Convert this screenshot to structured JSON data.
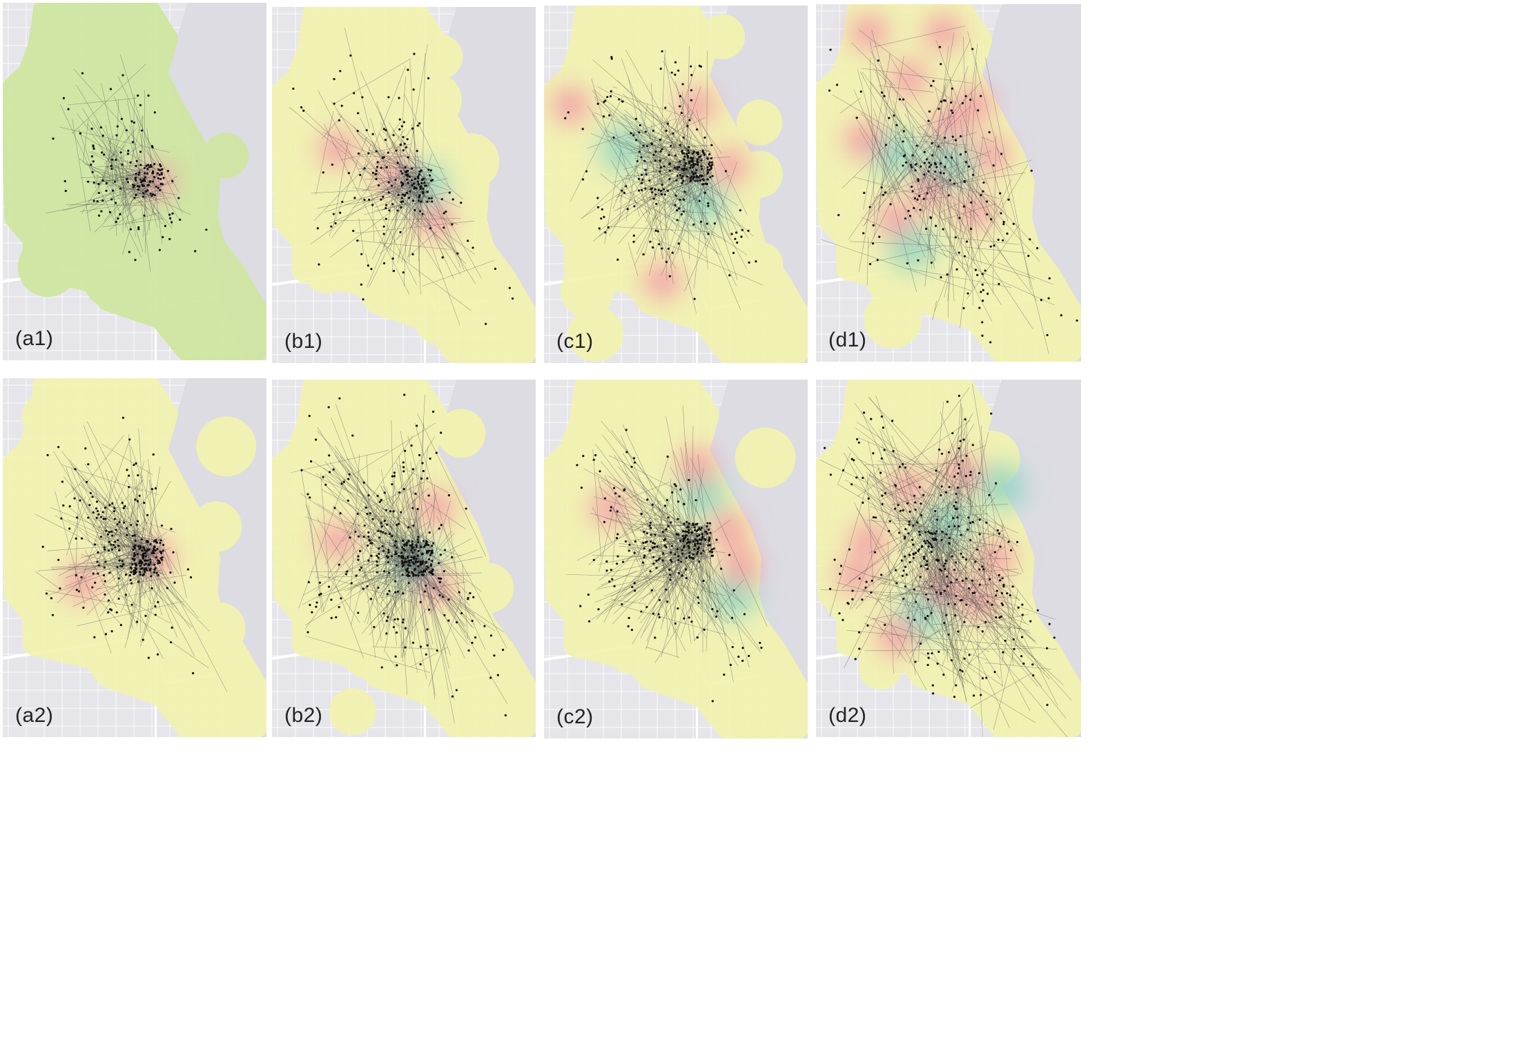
{
  "figure": {
    "panels": [
      {
        "id": "a1",
        "label": "(a1)",
        "base_color": "#cfe6a0",
        "seed": 11,
        "hub": "core",
        "spread": 0.55,
        "lines": 150,
        "points": 160,
        "hot": [
          [
            0.58,
            0.5
          ]
        ],
        "cool": []
      },
      {
        "id": "b1",
        "label": "(b1)",
        "base_color": "#f3f3b0",
        "seed": 23,
        "hub": "core",
        "spread": 0.8,
        "lines": 190,
        "points": 200,
        "hot": [
          [
            0.25,
            0.4
          ],
          [
            0.62,
            0.6
          ],
          [
            0.46,
            0.47
          ]
        ],
        "cool": [
          [
            0.58,
            0.5
          ]
        ]
      },
      {
        "id": "c1",
        "label": "(c1)",
        "base_color": "#f3f3b0",
        "seed": 37,
        "hub": "east",
        "spread": 0.75,
        "lines": 300,
        "points": 280,
        "hot": [
          [
            0.7,
            0.45
          ],
          [
            0.58,
            0.28
          ],
          [
            0.1,
            0.28
          ],
          [
            0.45,
            0.77
          ]
        ],
        "cool": [
          [
            0.3,
            0.4
          ],
          [
            0.6,
            0.55
          ]
        ]
      },
      {
        "id": "d1",
        "label": "(d1)",
        "base_color": "#f3f3b0",
        "seed": 41,
        "hub": "dispersed",
        "spread": 1.0,
        "lines": 160,
        "points": 180,
        "hot": [
          [
            0.2,
            0.08
          ],
          [
            0.48,
            0.08
          ],
          [
            0.35,
            0.21
          ],
          [
            0.6,
            0.28
          ],
          [
            0.5,
            0.34
          ],
          [
            0.66,
            0.42
          ],
          [
            0.43,
            0.52
          ],
          [
            0.6,
            0.58
          ],
          [
            0.18,
            0.38
          ],
          [
            0.3,
            0.6
          ]
        ],
        "cool": [
          [
            0.3,
            0.42
          ],
          [
            0.5,
            0.45
          ],
          [
            0.36,
            0.68
          ]
        ]
      },
      {
        "id": "a2",
        "label": "(a2)",
        "base_color": "#f3f3b0",
        "seed": 53,
        "hub": "core",
        "spread": 0.7,
        "lines": 260,
        "points": 280,
        "hot": [
          [
            0.58,
            0.5
          ],
          [
            0.3,
            0.57
          ]
        ],
        "cool": []
      },
      {
        "id": "b2",
        "label": "(b2)",
        "base_color": "#f3f3b0",
        "seed": 67,
        "hub": "core",
        "spread": 0.9,
        "lines": 320,
        "points": 360,
        "hot": [
          [
            0.25,
            0.45
          ],
          [
            0.62,
            0.36
          ],
          [
            0.62,
            0.58
          ]
        ],
        "cool": [
          [
            0.55,
            0.52
          ]
        ]
      },
      {
        "id": "c2",
        "label": "(c2)",
        "base_color": "#f3f3b0",
        "seed": 79,
        "hub": "east",
        "spread": 0.75,
        "lines": 300,
        "points": 260,
        "hot": [
          [
            0.7,
            0.42
          ],
          [
            0.75,
            0.52
          ],
          [
            0.25,
            0.36
          ],
          [
            0.58,
            0.24
          ]
        ],
        "cool": [
          [
            0.72,
            0.6
          ],
          [
            0.6,
            0.32
          ]
        ]
      },
      {
        "id": "d2",
        "label": "(d2)",
        "base_color": "#f3f3b0",
        "seed": 89,
        "hub": "dispersed",
        "spread": 1.0,
        "lines": 300,
        "points": 320,
        "hot": [
          [
            0.2,
            0.45
          ],
          [
            0.35,
            0.3
          ],
          [
            0.55,
            0.26
          ],
          [
            0.68,
            0.5
          ],
          [
            0.48,
            0.58
          ],
          [
            0.62,
            0.62
          ],
          [
            0.15,
            0.55
          ],
          [
            0.3,
            0.72
          ]
        ],
        "cool": [
          [
            0.5,
            0.4
          ],
          [
            0.7,
            0.3
          ],
          [
            0.4,
            0.66
          ]
        ]
      }
    ]
  }
}
